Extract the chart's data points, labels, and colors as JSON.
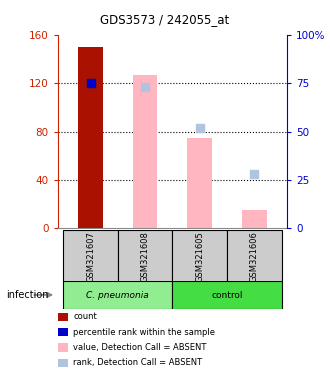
{
  "title": "GDS3573 / 242055_at",
  "samples": [
    "GSM321607",
    "GSM321608",
    "GSM321605",
    "GSM321606"
  ],
  "left_ylim": [
    0,
    160
  ],
  "right_ylim": [
    0,
    100
  ],
  "left_yticks": [
    0,
    40,
    80,
    120,
    160
  ],
  "right_yticks": [
    0,
    25,
    50,
    75,
    100
  ],
  "right_yticklabels": [
    "0",
    "25",
    "50",
    "75",
    "100%"
  ],
  "left_color": "#CC2200",
  "right_color": "#0000CC",
  "count_values": [
    150,
    null,
    null,
    null
  ],
  "count_color": "#AA1100",
  "value_absent_values": [
    null,
    127,
    75,
    15
  ],
  "value_absent_color": "#FFB6C1",
  "rank_dot_right": [
    75,
    null,
    null,
    null
  ],
  "rank_dot_color": "#0000CC",
  "rank_absent_right": [
    null,
    73,
    52,
    28
  ],
  "rank_absent_color": "#B0C4DE",
  "bar_width": 0.45,
  "dot_size": 30,
  "sample_box_color": "#CCCCCC",
  "group_color_cpneumonia": "#90EE90",
  "group_color_control": "#44DD44",
  "legend_items": [
    {
      "label": "count",
      "color": "#AA1100"
    },
    {
      "label": "percentile rank within the sample",
      "color": "#0000CC"
    },
    {
      "label": "value, Detection Call = ABSENT",
      "color": "#FFB6C1"
    },
    {
      "label": "rank, Detection Call = ABSENT",
      "color": "#B0C4DE"
    }
  ]
}
